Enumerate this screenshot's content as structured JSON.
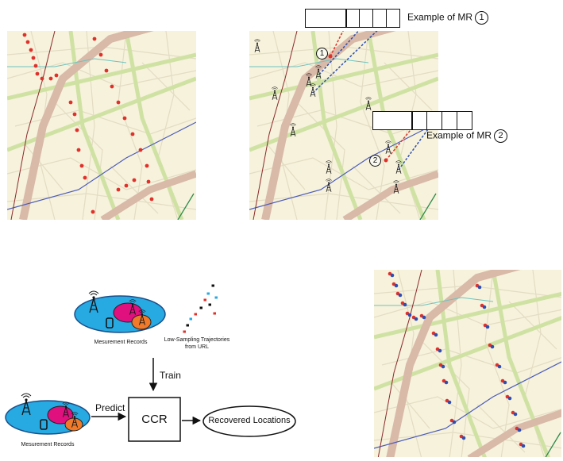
{
  "colors": {
    "map_bg": "#f6f2dc",
    "road_major": "#d9b9a8",
    "road_green": "#cfe2a3",
    "road_minor": "#e4dcc4",
    "rail_blue": "#4b5bb8",
    "river_teal": "#6ec3c0",
    "dark_red_line": "#8c2a2a",
    "point_red": "#e0302a",
    "point_blue": "#2f4fb0",
    "ellipse_blue": "#27a9e1",
    "blob_magenta": "#e0107f",
    "blob_orange": "#f07a2a"
  },
  "annotations": {
    "mr1_label": "Example of MR",
    "mr1_num": "1",
    "mr2_label": "Example of MR",
    "mr2_num": "2",
    "pt1": "1",
    "pt2": "2"
  },
  "pipeline": {
    "mr_caption_top": "Mesurement Records",
    "trajectory_caption_line1": "Low-Sampling Trajectories",
    "trajectory_caption_line2": "from URL",
    "train_label": "Train",
    "predict_label": "Predict",
    "model_label": "CCR",
    "output_label": "Recovered Locations",
    "mr_caption_bottom": "Mesurement Records"
  },
  "icons": {
    "tower": "cell-tower-icon",
    "phone": "phone-icon"
  }
}
